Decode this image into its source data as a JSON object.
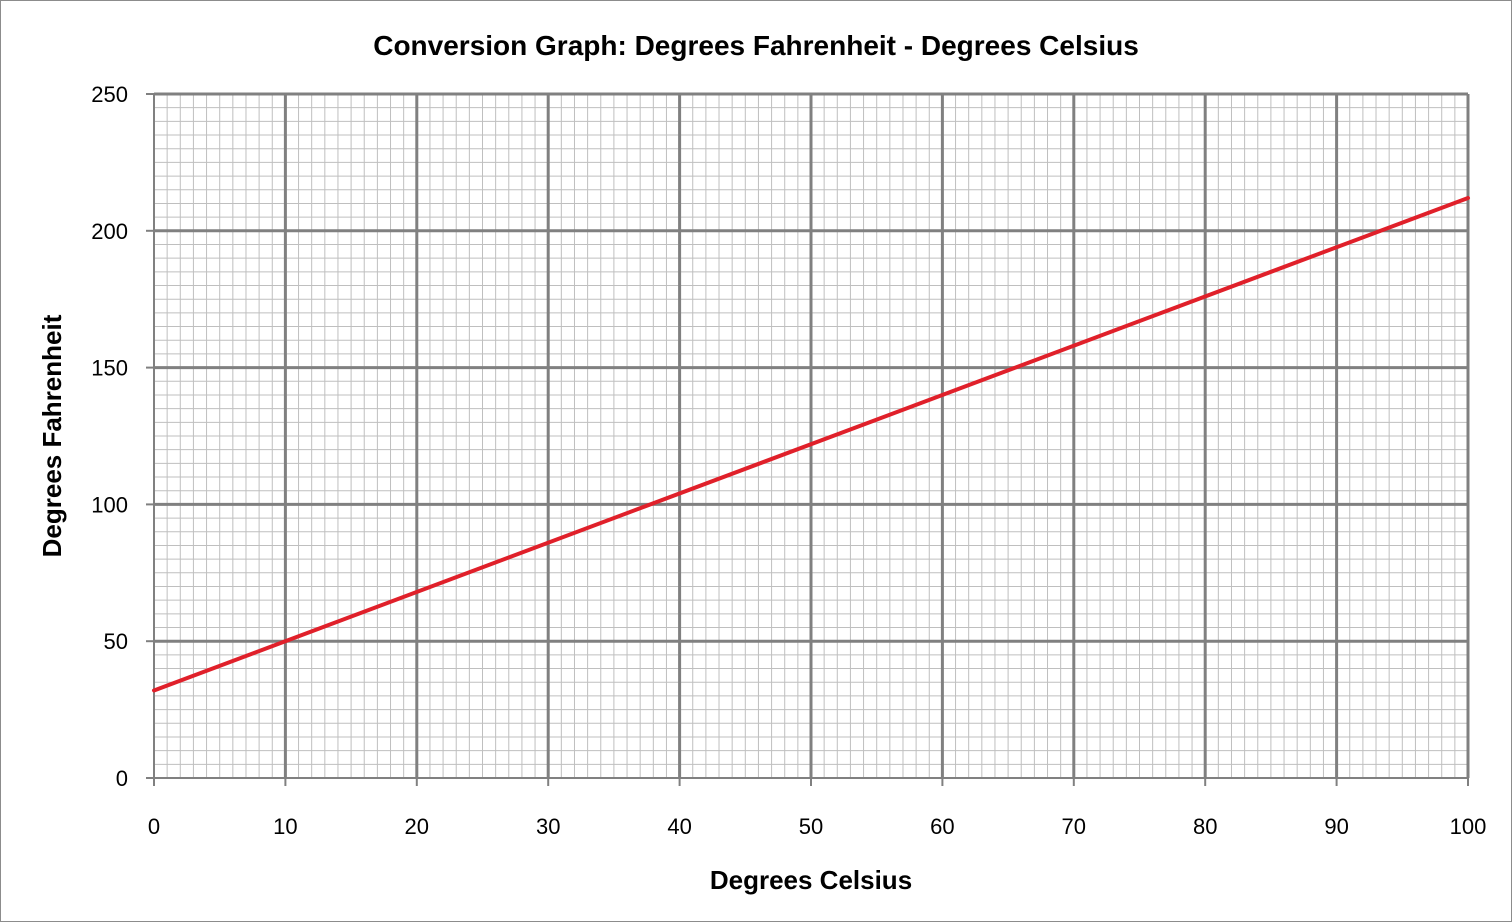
{
  "chart_data": {
    "type": "line",
    "title": "Conversion Graph: Degrees Fahrenheit - Degrees Celsius",
    "xlabel": "Degrees Celsius",
    "ylabel": "Degrees Fahrenheit",
    "xlim": [
      0,
      100
    ],
    "ylim": [
      0,
      250
    ],
    "x_ticks": [
      0,
      10,
      20,
      30,
      40,
      50,
      60,
      70,
      80,
      90,
      100
    ],
    "y_ticks": [
      0,
      50,
      100,
      150,
      200,
      250
    ],
    "grid": true,
    "legend": "none",
    "series": [
      {
        "x": [
          0,
          100
        ],
        "values": [
          32,
          212
        ],
        "color": "#e0202a"
      }
    ]
  },
  "colors": {
    "major_grid": "#808080",
    "minor_grid": "#bfbfbf",
    "line": "#e0202a"
  }
}
